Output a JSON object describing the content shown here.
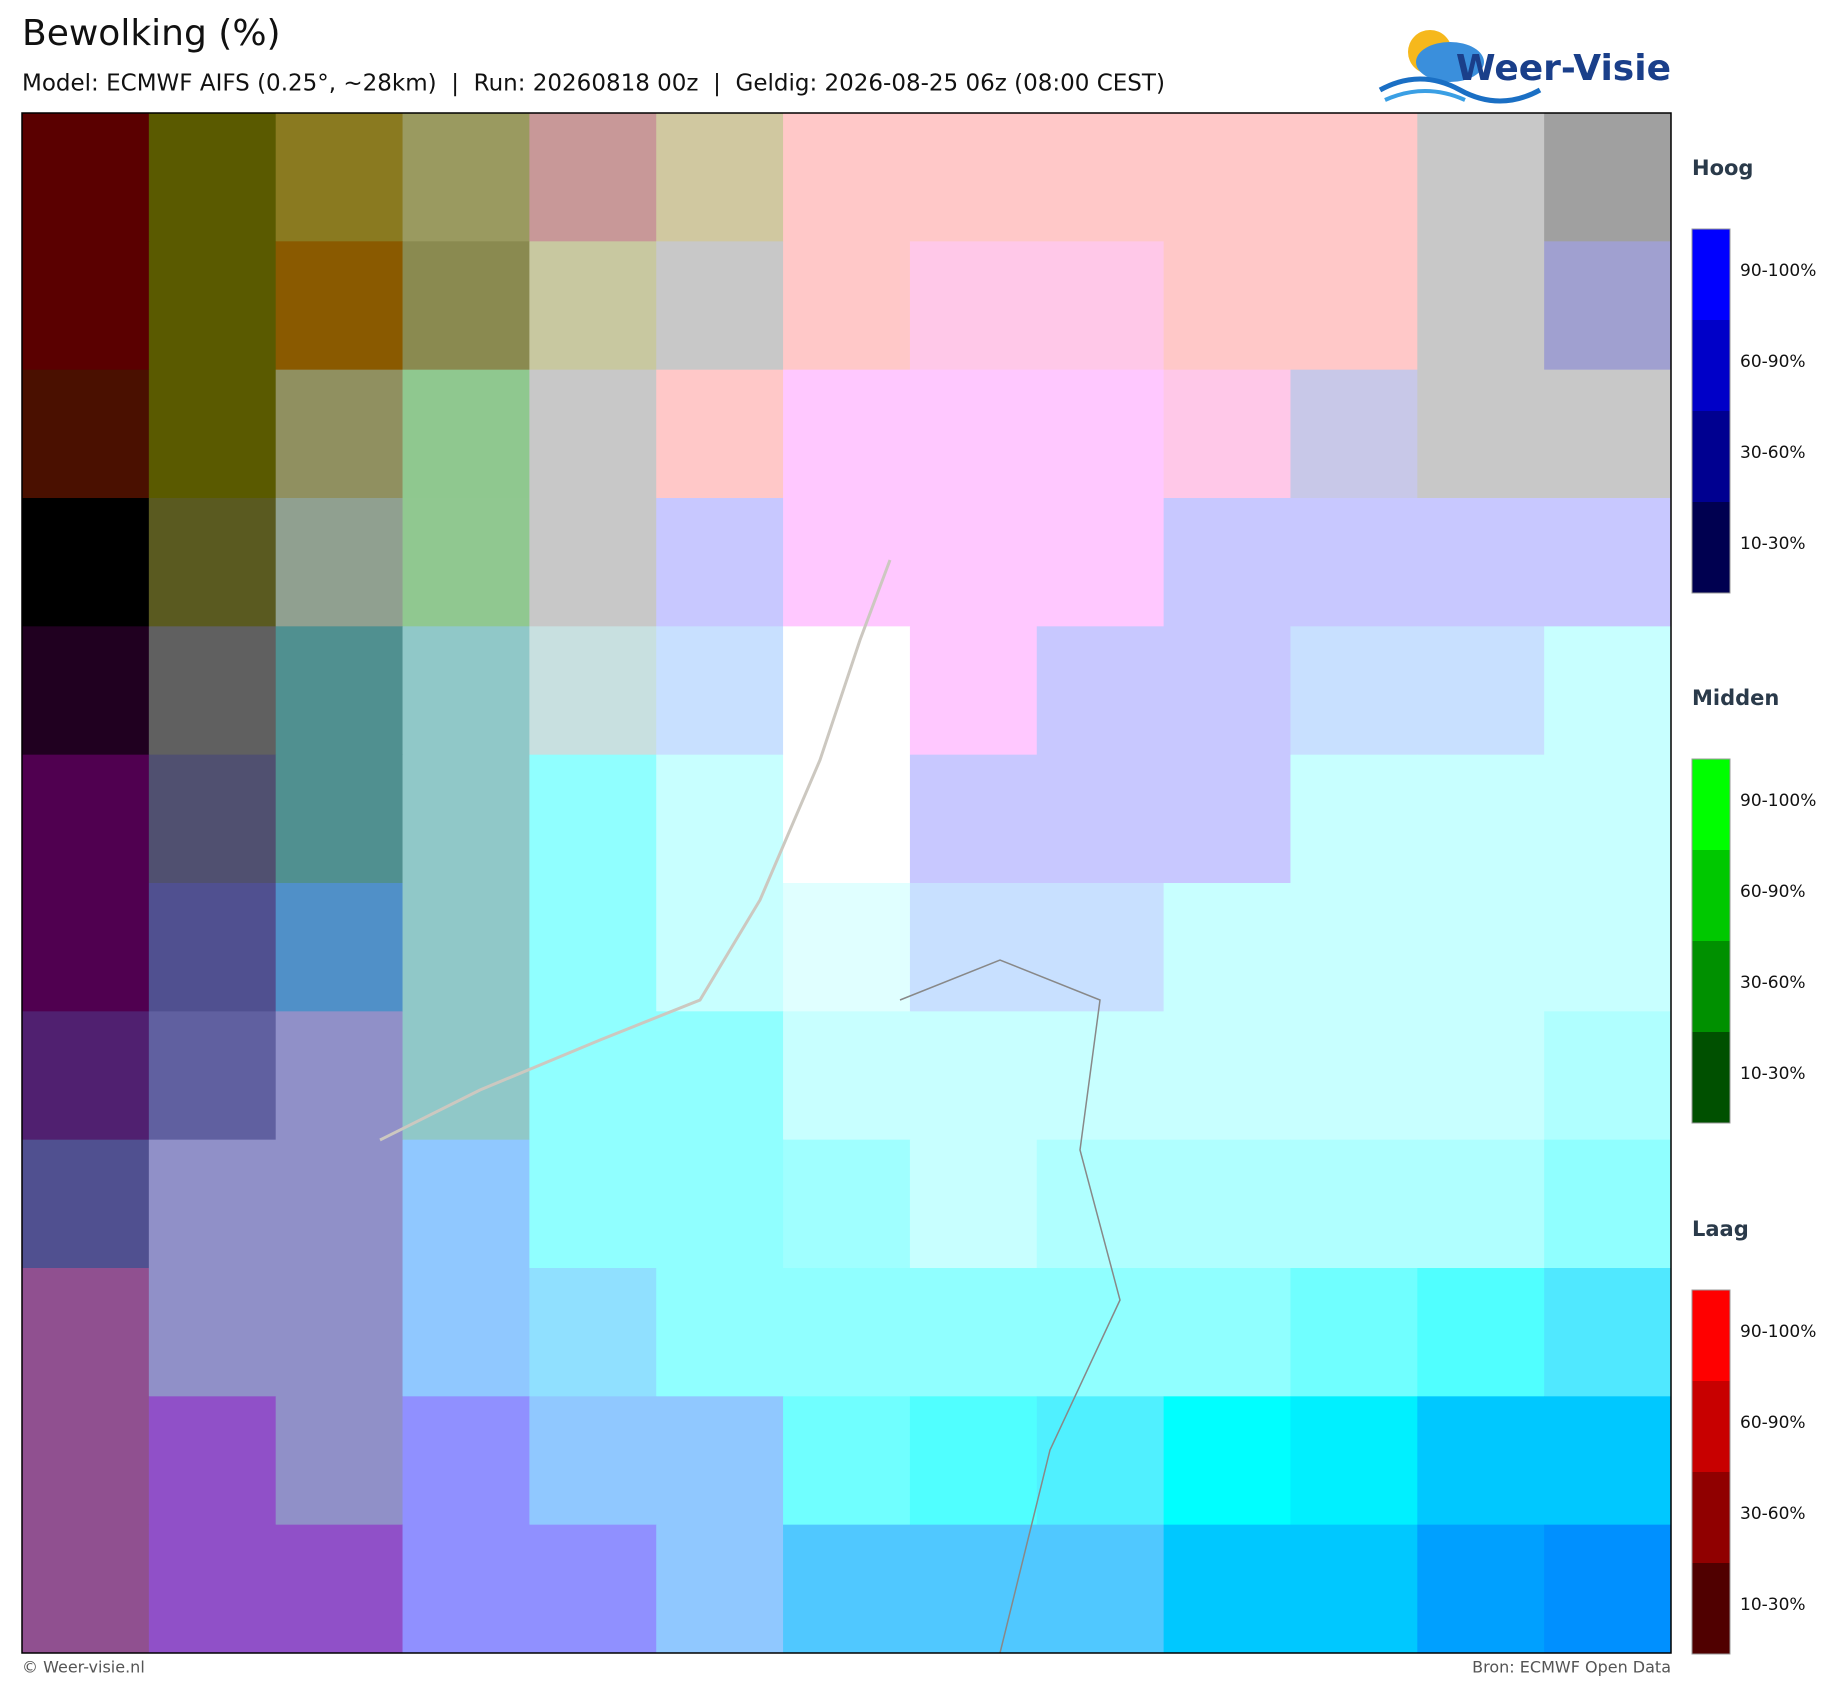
{
  "header": {
    "title": "Bewolking (%)",
    "subtitle": "Model: ECMWF AIFS (0.25°, ~28km)  |  Run: 20260818 00z  |  Geldig: 2026-08-25 06z (08:00 CEST)"
  },
  "logo": "Weer-Visie",
  "legend": [
    {
      "title": "Hoog",
      "items": [
        "90-100%",
        "60-90%",
        "30-60%",
        "10-30%"
      ],
      "colors": [
        "#0000ff",
        "#0000c8",
        "#000090",
        "#000050"
      ]
    },
    {
      "title": "Midden",
      "items": [
        "90-100%",
        "60-90%",
        "30-60%",
        "10-30%"
      ],
      "colors": [
        "#00ff00",
        "#00c800",
        "#009000",
        "#005000"
      ]
    },
    {
      "title": "Laag",
      "items": [
        "90-100%",
        "60-90%",
        "30-60%",
        "10-30%"
      ],
      "colors": [
        "#ff0000",
        "#c80000",
        "#900000",
        "#500000"
      ]
    }
  ],
  "footer": {
    "left": "© Weer-visie.nl",
    "right": "Bron: ECMWF Open Data"
  }
}
